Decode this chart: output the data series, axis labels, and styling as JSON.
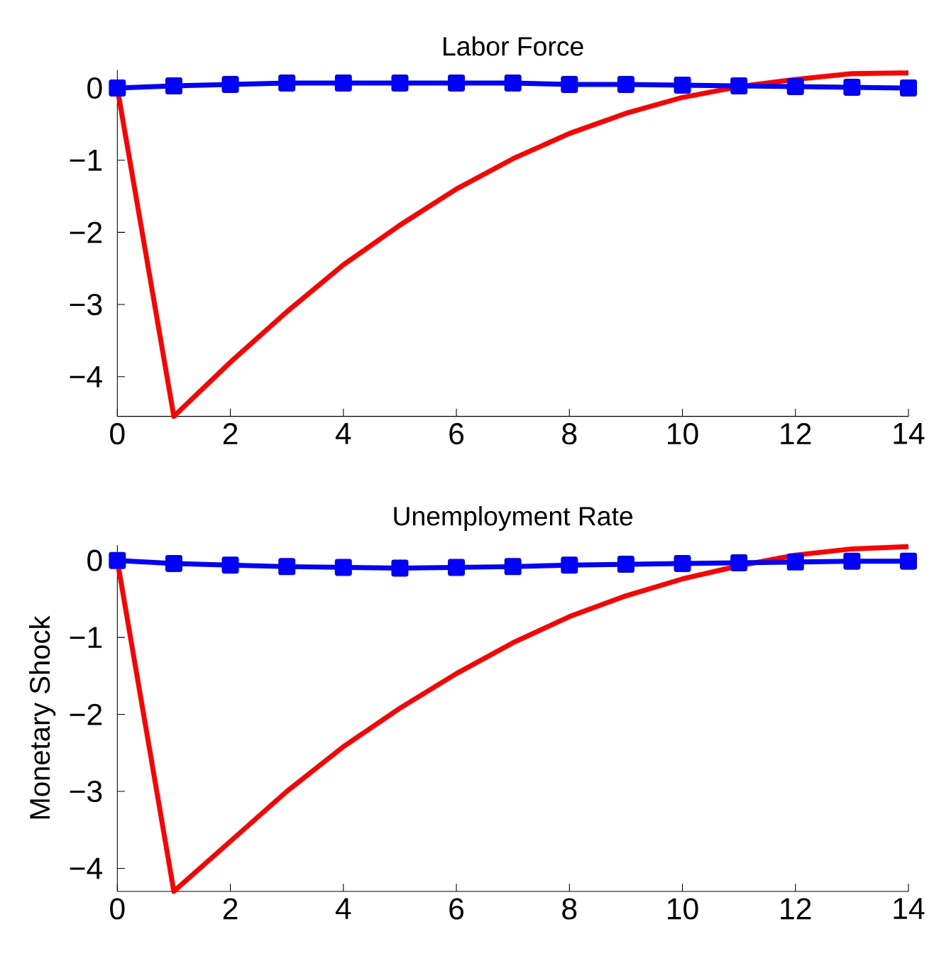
{
  "chart_data": [
    {
      "type": "line",
      "title": "Labor Force",
      "x": [
        0,
        1,
        2,
        3,
        4,
        5,
        6,
        7,
        8,
        9,
        10,
        11,
        12,
        13,
        14
      ],
      "xlim": [
        0,
        14
      ],
      "ylim": [
        -4.55,
        0.25
      ],
      "xticks": [
        0,
        2,
        4,
        6,
        8,
        10,
        12,
        14
      ],
      "yticks": [
        {
          "value": -4,
          "label": "−4"
        },
        {
          "value": -3,
          "label": "−3"
        },
        {
          "value": -2,
          "label": "−2"
        },
        {
          "value": -1,
          "label": "−1"
        },
        0
      ],
      "series": [
        {
          "color": "#ff0000",
          "marker": "none",
          "values": [
            0,
            -4.55,
            -3.8,
            -3.1,
            -2.45,
            -1.9,
            -1.4,
            -0.98,
            -0.63,
            -0.35,
            -0.13,
            0.02,
            0.12,
            0.2,
            0.21
          ]
        },
        {
          "color": "#0000ff",
          "marker": "square",
          "values": [
            0,
            0.03,
            0.05,
            0.07,
            0.07,
            0.07,
            0.07,
            0.07,
            0.05,
            0.05,
            0.04,
            0.03,
            0.02,
            0.01,
            0
          ]
        }
      ]
    },
    {
      "type": "line",
      "title": "Unemployment Rate",
      "ylabel": "Monetary Shock",
      "x": [
        0,
        1,
        2,
        3,
        4,
        5,
        6,
        7,
        8,
        9,
        10,
        11,
        12,
        13,
        14
      ],
      "xlim": [
        0,
        14
      ],
      "ylim": [
        -4.3,
        0.2
      ],
      "xticks": [
        0,
        2,
        4,
        6,
        8,
        10,
        12,
        14
      ],
      "yticks": [
        {
          "value": -4,
          "label": "−4"
        },
        {
          "value": -3,
          "label": "−3"
        },
        {
          "value": -2,
          "label": "−2"
        },
        {
          "value": -1,
          "label": "−1"
        },
        0
      ],
      "series": [
        {
          "color": "#ff0000",
          "marker": "none",
          "values": [
            0,
            -4.3,
            -3.65,
            -3.0,
            -2.42,
            -1.92,
            -1.47,
            -1.07,
            -0.73,
            -0.46,
            -0.24,
            -0.07,
            0.07,
            0.15,
            0.18
          ]
        },
        {
          "color": "#0000ff",
          "marker": "square",
          "values": [
            0,
            -0.04,
            -0.06,
            -0.08,
            -0.09,
            -0.1,
            -0.09,
            -0.08,
            -0.06,
            -0.05,
            -0.04,
            -0.03,
            -0.02,
            -0.01,
            -0.01
          ]
        }
      ]
    }
  ]
}
